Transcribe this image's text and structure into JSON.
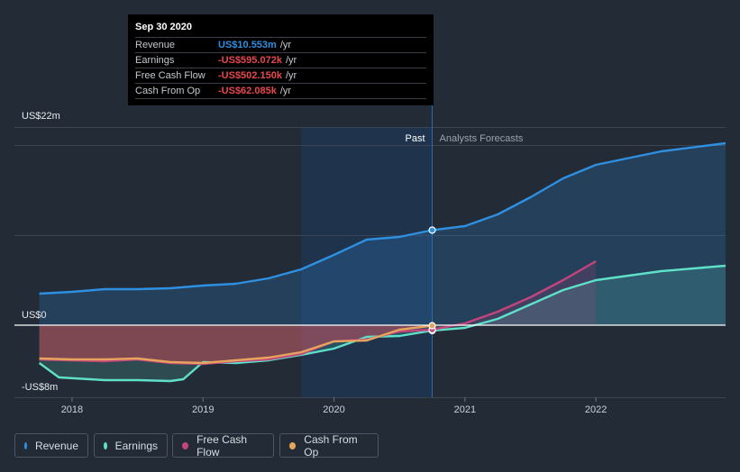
{
  "tooltip": {
    "date": "Sep 30 2020",
    "rows": [
      {
        "label": "Revenue",
        "value": "US$10.553m",
        "unit": "/yr",
        "color": "#2f8fe0"
      },
      {
        "label": "Earnings",
        "value": "-US$595.072k",
        "unit": "/yr",
        "color": "#e5484d"
      },
      {
        "label": "Free Cash Flow",
        "value": "-US$502.150k",
        "unit": "/yr",
        "color": "#e5484d"
      },
      {
        "label": "Cash From Op",
        "value": "-US$62.085k",
        "unit": "/yr",
        "color": "#e5484d"
      }
    ]
  },
  "regions": {
    "past": "Past",
    "forecast": "Analysts Forecasts"
  },
  "legend": [
    {
      "label": "Revenue",
      "color": "#2f8fe0"
    },
    {
      "label": "Earnings",
      "color": "#5fe0c8"
    },
    {
      "label": "Free Cash Flow",
      "color": "#c2457c"
    },
    {
      "label": "Cash From Op",
      "color": "#e6a45c"
    }
  ],
  "chart_data": {
    "type": "line",
    "title": "",
    "ylim": [
      -8,
      22
    ],
    "y_tick_labels": [
      {
        "value": 22,
        "label": "US$22m"
      },
      {
        "value": 0,
        "label": "US$0"
      },
      {
        "value": -8,
        "label": "-US$8m"
      }
    ],
    "x_tick_labels": [
      {
        "value": 2018,
        "label": "2018"
      },
      {
        "value": 2019,
        "label": "2019"
      },
      {
        "value": 2020,
        "label": "2020"
      },
      {
        "value": 2021,
        "label": "2021"
      },
      {
        "value": 2022,
        "label": "2022"
      }
    ],
    "xlim": [
      2017.56,
      2022.99
    ],
    "past_end": 2020.75,
    "highlight_start": 2019.75,
    "grid": true,
    "series": [
      {
        "name": "Revenue",
        "color": "#2f8fe0",
        "points": [
          [
            2017.75,
            3.5
          ],
          [
            2018.0,
            3.7
          ],
          [
            2018.25,
            4.0
          ],
          [
            2018.5,
            4.0
          ],
          [
            2018.75,
            4.1
          ],
          [
            2019.0,
            4.4
          ],
          [
            2019.25,
            4.6
          ],
          [
            2019.5,
            5.2
          ],
          [
            2019.75,
            6.2
          ],
          [
            2020.0,
            7.8
          ],
          [
            2020.25,
            9.5
          ],
          [
            2020.5,
            9.8
          ],
          [
            2020.75,
            10.55
          ],
          [
            2021.0,
            11.0
          ],
          [
            2021.25,
            12.3
          ],
          [
            2021.5,
            14.2
          ],
          [
            2021.75,
            16.3
          ],
          [
            2022.0,
            17.8
          ],
          [
            2022.5,
            19.3
          ],
          [
            2022.99,
            20.2
          ]
        ]
      },
      {
        "name": "Earnings",
        "color": "#5fe0c8",
        "points": [
          [
            2017.75,
            -4.2
          ],
          [
            2017.9,
            -5.8
          ],
          [
            2018.25,
            -6.1
          ],
          [
            2018.5,
            -6.1
          ],
          [
            2018.75,
            -6.2
          ],
          [
            2018.85,
            -6.0
          ],
          [
            2019.0,
            -4.1
          ],
          [
            2019.25,
            -4.2
          ],
          [
            2019.5,
            -3.9
          ],
          [
            2019.75,
            -3.3
          ],
          [
            2020.0,
            -2.6
          ],
          [
            2020.25,
            -1.3
          ],
          [
            2020.5,
            -1.2
          ],
          [
            2020.75,
            -0.6
          ],
          [
            2021.0,
            -0.3
          ],
          [
            2021.25,
            0.7
          ],
          [
            2021.5,
            2.3
          ],
          [
            2021.75,
            3.9
          ],
          [
            2022.0,
            5.0
          ],
          [
            2022.5,
            6.0
          ],
          [
            2022.99,
            6.6
          ]
        ]
      },
      {
        "name": "Free Cash Flow",
        "color": "#c2457c",
        "points": [
          [
            2017.75,
            -3.8
          ],
          [
            2018.0,
            -3.9
          ],
          [
            2018.25,
            -4.0
          ],
          [
            2018.5,
            -3.8
          ],
          [
            2018.75,
            -4.2
          ],
          [
            2019.0,
            -4.3
          ],
          [
            2019.25,
            -4.0
          ],
          [
            2019.5,
            -3.8
          ],
          [
            2019.75,
            -3.2
          ],
          [
            2020.0,
            -1.8
          ],
          [
            2020.25,
            -1.6
          ],
          [
            2020.5,
            -0.7
          ],
          [
            2020.75,
            -0.5
          ],
          [
            2021.0,
            0.2
          ],
          [
            2021.25,
            1.5
          ],
          [
            2021.5,
            3.1
          ],
          [
            2021.75,
            5.0
          ],
          [
            2022.0,
            7.1
          ]
        ]
      },
      {
        "name": "Cash From Op",
        "color": "#e6a45c",
        "points": [
          [
            2017.75,
            -3.7
          ],
          [
            2018.0,
            -3.8
          ],
          [
            2018.25,
            -3.8
          ],
          [
            2018.5,
            -3.7
          ],
          [
            2018.75,
            -4.1
          ],
          [
            2019.0,
            -4.2
          ],
          [
            2019.25,
            -3.9
          ],
          [
            2019.5,
            -3.6
          ],
          [
            2019.75,
            -3.0
          ],
          [
            2020.0,
            -1.8
          ],
          [
            2020.25,
            -1.7
          ],
          [
            2020.5,
            -0.5
          ],
          [
            2020.75,
            -0.06
          ]
        ]
      }
    ]
  }
}
